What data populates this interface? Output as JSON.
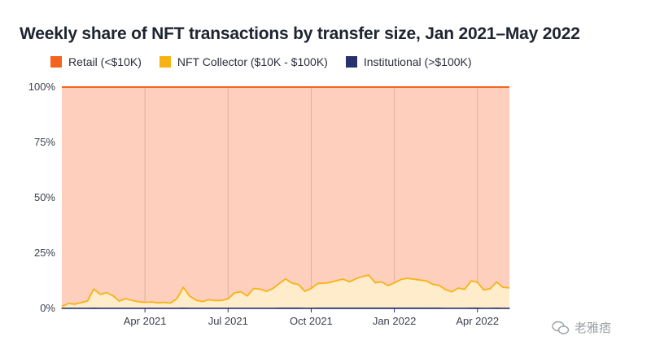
{
  "title": "Weekly share of NFT transactions by transfer size, Jan 2021–May 2022",
  "watermark": "老雅痞",
  "chart_data": {
    "type": "area",
    "stacked_percent": true,
    "legend_position": "top-left",
    "grid": true,
    "ylim": [
      0,
      100
    ],
    "y_ticks": [
      "0%",
      "25%",
      "50%",
      "75%",
      "100%"
    ],
    "x_ticks": [
      "Apr 2021",
      "Jul 2021",
      "Oct 2021",
      "Jan 2022",
      "Apr 2022"
    ],
    "x_tick_weeks": [
      13,
      26,
      39,
      52,
      65
    ],
    "series": [
      {
        "name": "Retail (<$10K)",
        "color": "#f3651c",
        "fill": "#fecfbd"
      },
      {
        "name": "NFT Collector ($10K - $100K)",
        "color": "#f7b214",
        "fill": "#feeccb",
        "values": [
          0.8,
          2.1,
          1.8,
          2.5,
          3.2,
          8.5,
          6.2,
          7.0,
          5.6,
          3.2,
          4.3,
          3.5,
          2.9,
          2.6,
          2.8,
          2.4,
          2.6,
          2.3,
          4.3,
          9.3,
          5.4,
          3.6,
          3.0,
          3.8,
          3.4,
          3.5,
          4.2,
          6.9,
          7.4,
          5.5,
          8.9,
          8.6,
          7.6,
          8.9,
          11.0,
          13.1,
          11.2,
          10.6,
          7.6,
          8.9,
          11.0,
          11.2,
          11.5,
          12.4,
          13.0,
          11.8,
          13.2,
          14.2,
          14.8,
          11.4,
          11.8,
          10.1,
          11.3,
          12.8,
          13.4,
          13.0,
          12.6,
          12.2,
          10.7,
          10.2,
          8.4,
          7.4,
          9.1,
          8.5,
          12.2,
          11.6,
          8.2,
          8.8,
          11.7,
          9.4,
          9.2
        ]
      },
      {
        "name": "Institutional (>$100K)",
        "color": "#27326b",
        "fill": "#27326b",
        "values": [
          0.1,
          0.1,
          0.1,
          0.1,
          0.1,
          0.2,
          0.1,
          0.1,
          0.1,
          0.1,
          0.1,
          0.1,
          0.1,
          0.1,
          0.1,
          0.1,
          0.1,
          0.1,
          0.1,
          0.2,
          0.1,
          0.1,
          0.1,
          0.1,
          0.1,
          0.1,
          0.1,
          0.1,
          0.1,
          0.1,
          0.1,
          0.1,
          0.1,
          0.1,
          0.2,
          0.2,
          0.2,
          0.2,
          0.1,
          0.1,
          0.2,
          0.2,
          0.2,
          0.2,
          0.2,
          0.2,
          0.2,
          0.2,
          0.2,
          0.2,
          0.2,
          0.2,
          0.2,
          0.2,
          0.2,
          0.2,
          0.2,
          0.2,
          0.2,
          0.2,
          0.1,
          0.1,
          0.1,
          0.1,
          0.2,
          0.2,
          0.1,
          0.1,
          0.2,
          0.1,
          0.1
        ]
      }
    ]
  }
}
